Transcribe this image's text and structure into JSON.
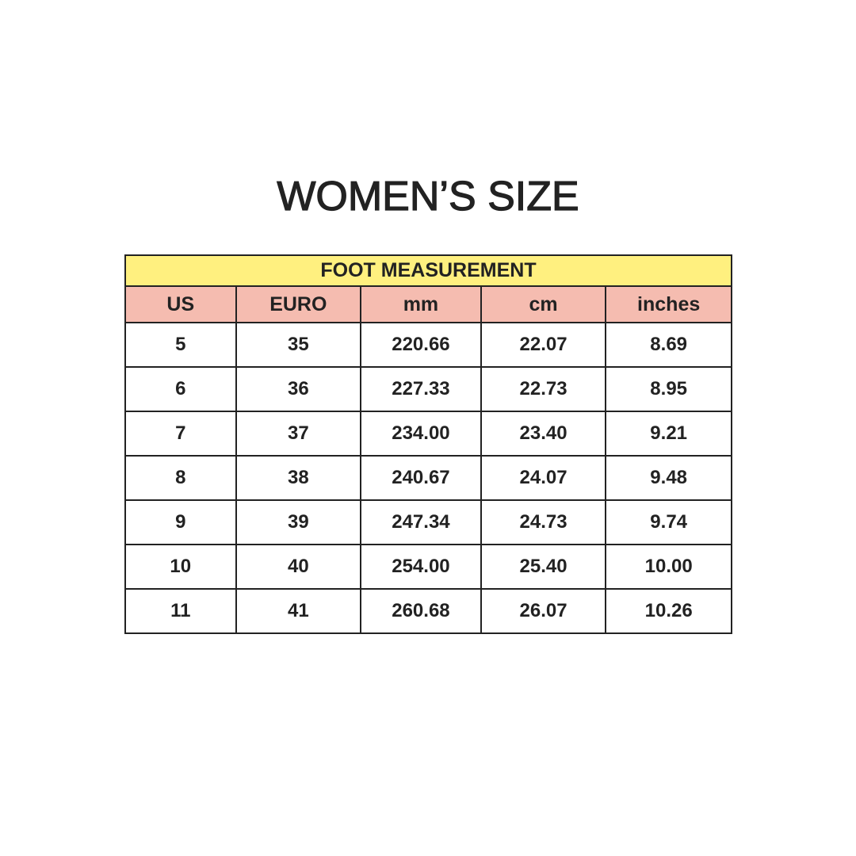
{
  "title": "WOMEN’S SIZE",
  "colors": {
    "header_bg": "#FFF07F",
    "columns_bg": "#F5BCB0",
    "text": "#222222"
  },
  "table": {
    "group_header": "FOOT MEASUREMENT",
    "columns": [
      "US",
      "EURO",
      "mm",
      "cm",
      "inches"
    ],
    "rows": [
      [
        "5",
        "35",
        "220.66",
        "22.07",
        "8.69"
      ],
      [
        "6",
        "36",
        "227.33",
        "22.73",
        "8.95"
      ],
      [
        "7",
        "37",
        "234.00",
        "23.40",
        "9.21"
      ],
      [
        "8",
        "38",
        "240.67",
        "24.07",
        "9.48"
      ],
      [
        "9",
        "39",
        "247.34",
        "24.73",
        "9.74"
      ],
      [
        "10",
        "40",
        "254.00",
        "25.40",
        "10.00"
      ],
      [
        "11",
        "41",
        "260.68",
        "26.07",
        "10.26"
      ]
    ]
  }
}
